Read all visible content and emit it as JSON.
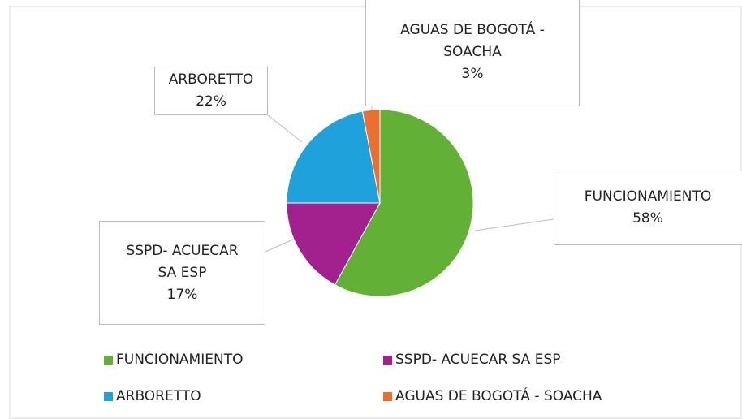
{
  "chart_data": {
    "type": "pie",
    "categories": [
      "FUNCIONAMIENTO",
      "SSPD- ACUECAR SA ESP",
      "ARBORETTO",
      "AGUAS DE BOGOTÁ - SOACHA"
    ],
    "values": [
      58,
      17,
      22,
      3
    ],
    "value_labels": [
      "58%",
      "17%",
      "22%",
      "3%"
    ],
    "colors": [
      "#62b035",
      "#a3218f",
      "#1fa1dc",
      "#ec6f2f"
    ],
    "legend": "bottom"
  }
}
